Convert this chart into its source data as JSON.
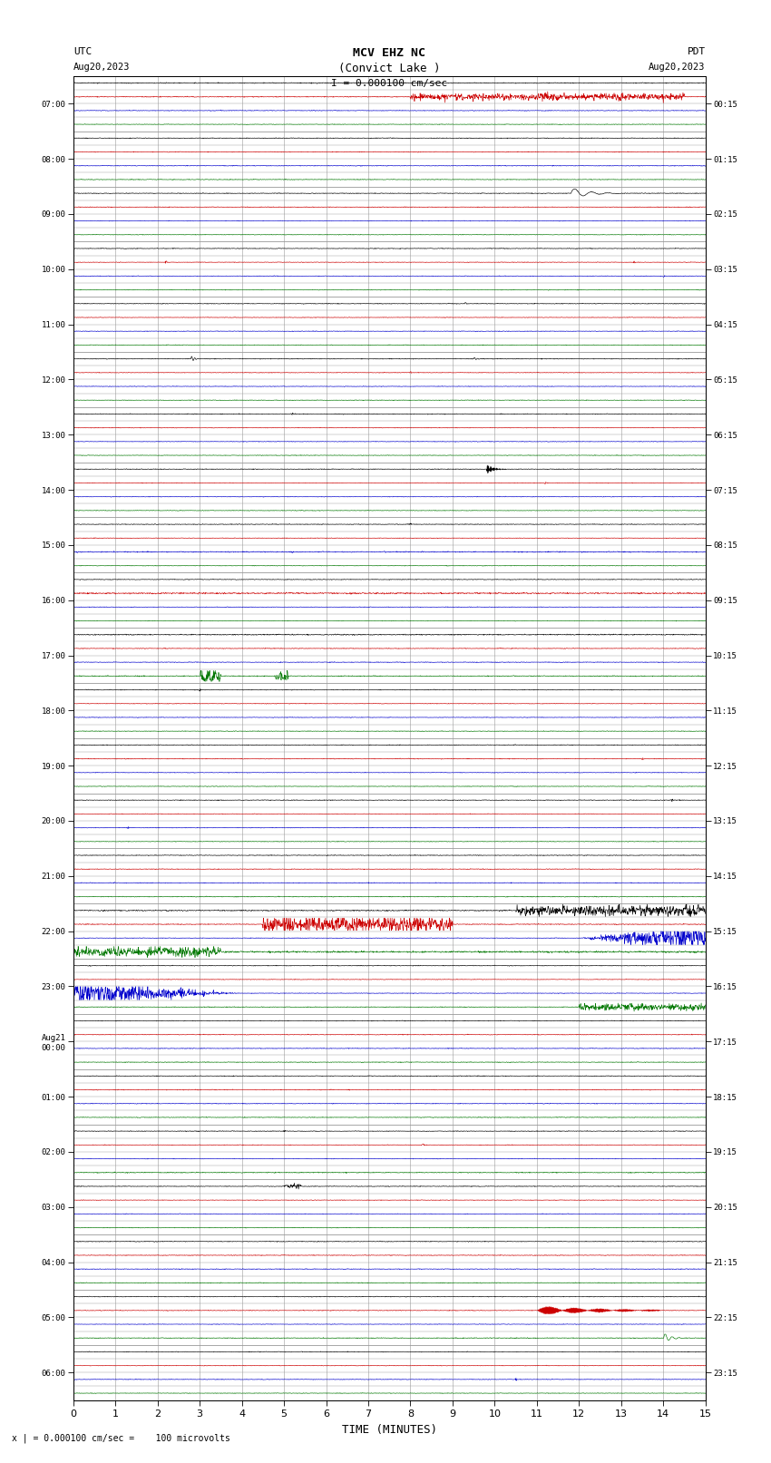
{
  "title_line1": "MCV EHZ NC",
  "title_line2": "(Convict Lake )",
  "title_line3": "I = 0.000100 cm/sec",
  "left_label_top": "UTC",
  "left_label_date": "Aug20,2023",
  "right_label_top": "PDT",
  "right_label_date": "Aug20,2023",
  "bottom_label": "TIME (MINUTES)",
  "bottom_note": "x | = 0.000100 cm/sec =    100 microvolts",
  "utc_times": [
    "07:00",
    "08:00",
    "09:00",
    "10:00",
    "11:00",
    "12:00",
    "13:00",
    "14:00",
    "15:00",
    "16:00",
    "17:00",
    "18:00",
    "19:00",
    "20:00",
    "21:00",
    "22:00",
    "23:00",
    "Aug21\n00:00",
    "01:00",
    "02:00",
    "03:00",
    "04:00",
    "05:00",
    "06:00"
  ],
  "pdt_times": [
    "00:15",
    "01:15",
    "02:15",
    "03:15",
    "04:15",
    "05:15",
    "06:15",
    "07:15",
    "08:15",
    "09:15",
    "10:15",
    "11:15",
    "12:15",
    "13:15",
    "14:15",
    "15:15",
    "16:15",
    "17:15",
    "18:15",
    "19:15",
    "20:15",
    "21:15",
    "22:15",
    "23:15"
  ],
  "n_rows": 24,
  "n_minutes": 15,
  "bg_color": "#ffffff",
  "grid_color": "#999999",
  "BLACK": "#000000",
  "RED": "#cc0000",
  "BLUE": "#0000cc",
  "GREEN": "#007700"
}
